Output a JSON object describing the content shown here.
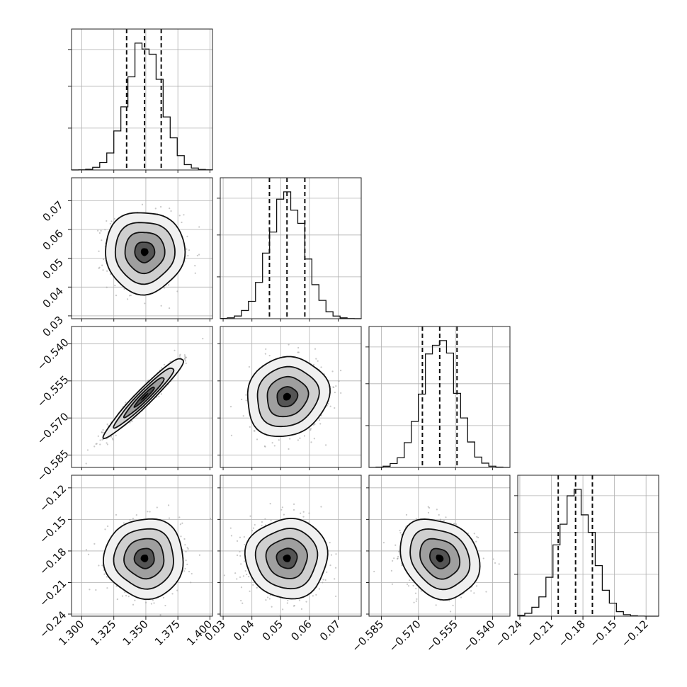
{
  "chart_data": {
    "type": "corner",
    "parameters": [
      {
        "ticks": [
          1.3,
          1.325,
          1.35,
          1.375,
          1.4
        ],
        "tick_labels": [
          "1.300",
          "1.325",
          "1.350",
          "1.375",
          "1.400"
        ],
        "range": [
          1.292,
          1.402
        ],
        "median": 1.349,
        "q16": 1.335,
        "q84": 1.362,
        "sigma": 0.0135
      },
      {
        "ticks": [
          0.03,
          0.04,
          0.05,
          0.06,
          0.07
        ],
        "tick_labels": [
          "0.03",
          "0.04",
          "0.05",
          "0.06",
          "0.07"
        ],
        "range": [
          0.029,
          0.078
        ],
        "median": 0.0522,
        "q16": 0.0461,
        "q84": 0.0584,
        "sigma": 0.0062
      },
      {
        "ticks": [
          -0.585,
          -0.57,
          -0.555,
          -0.54
        ],
        "tick_labels": [
          "−0.585",
          "−0.570",
          "−0.555",
          "−0.540"
        ],
        "range": [
          -0.59,
          -0.533
        ],
        "median": -0.5614,
        "q16": -0.5684,
        "q84": -0.5544,
        "sigma": 0.007
      },
      {
        "ticks": [
          -0.24,
          -0.21,
          -0.18,
          -0.15,
          -0.12
        ],
        "tick_labels": [
          "−0.24",
          "−0.21",
          "−0.18",
          "−0.15",
          "−0.12"
        ],
        "range": [
          -0.242,
          -0.108
        ],
        "median": -0.187,
        "q16": -0.2035,
        "q84": -0.171,
        "sigma": 0.0165
      }
    ],
    "correlations": {
      "0-1": 0.0,
      "0-2": 0.96,
      "0-3": 0.0,
      "1-2": 0.1,
      "1-3": 0.0,
      "2-3": -0.2
    },
    "histogram_bins": 20,
    "contour_levels_sigma": [
      0.5,
      1.0,
      1.5,
      2.0
    ],
    "grid": true,
    "title": "",
    "xlabel": "",
    "ylabel": ""
  }
}
